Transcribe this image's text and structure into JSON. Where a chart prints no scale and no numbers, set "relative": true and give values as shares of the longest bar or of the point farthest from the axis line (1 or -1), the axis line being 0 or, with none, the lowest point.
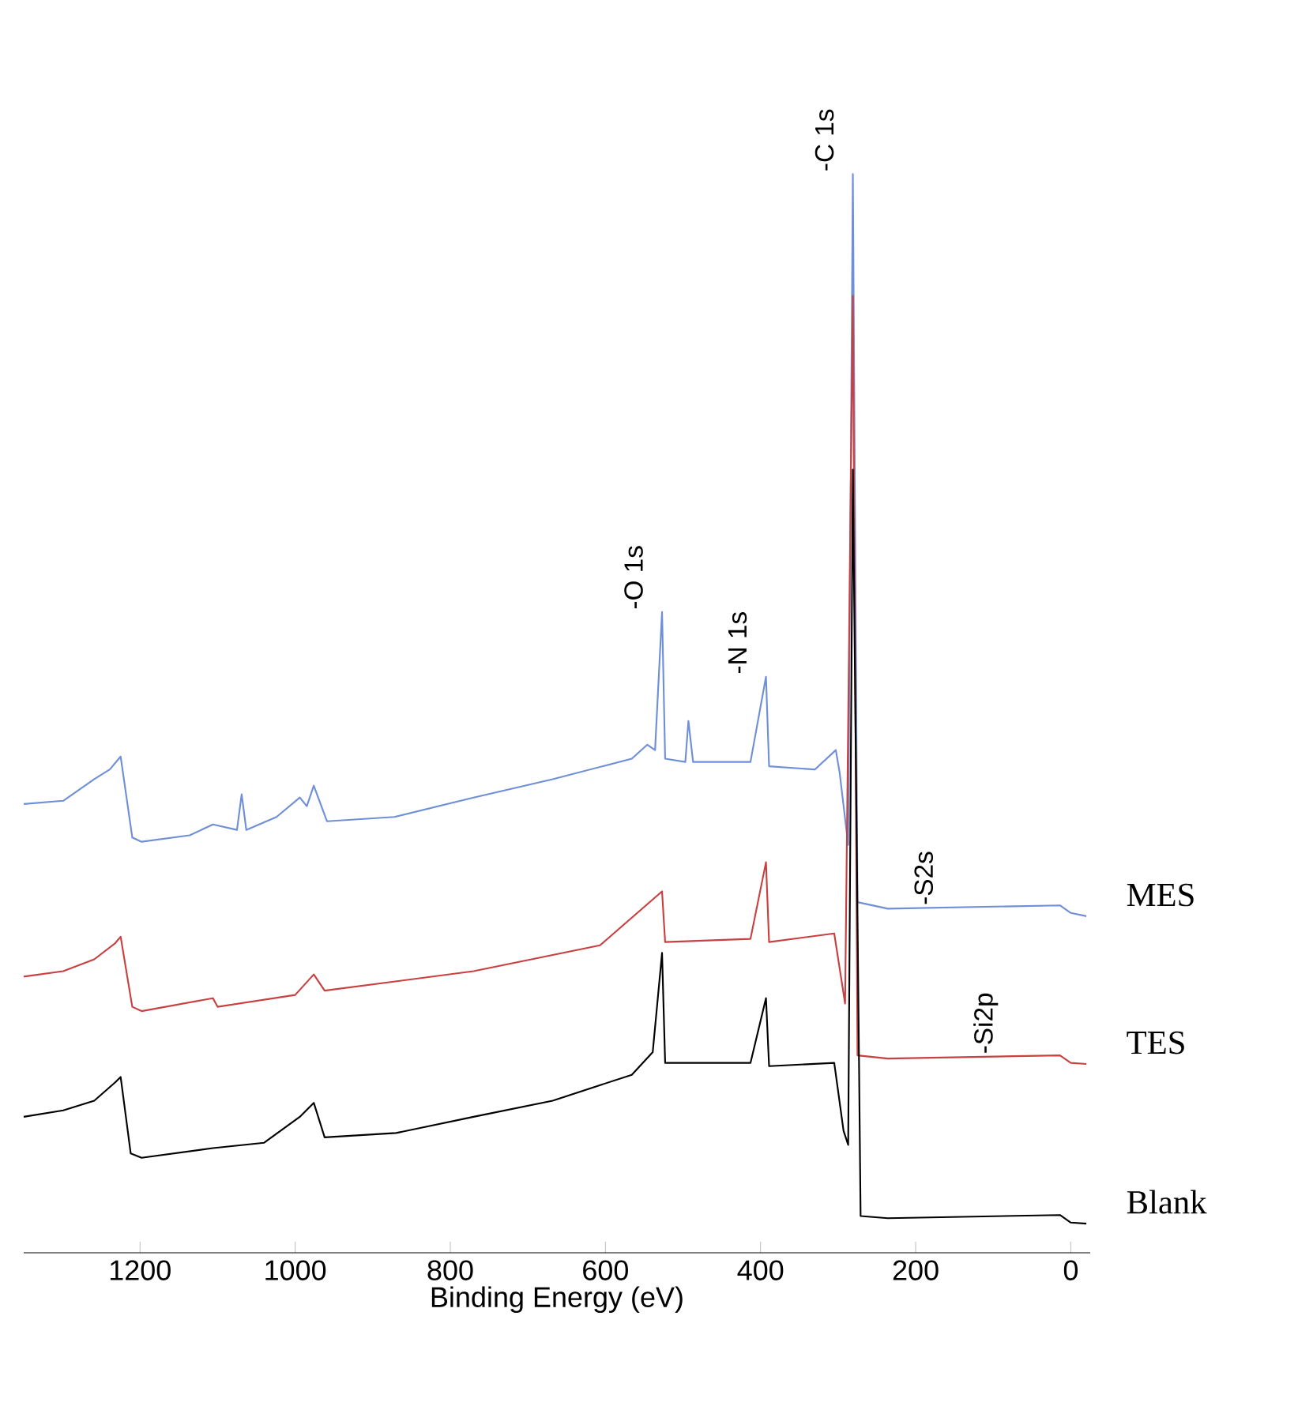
{
  "chart_data": {
    "type": "line",
    "relative": true,
    "xlabel": "Binding Energy (eV)",
    "xlim": [
      1350,
      -25
    ],
    "xticks": [
      1200,
      1000,
      800,
      600,
      400,
      200,
      0
    ],
    "series": [
      {
        "name": "MES",
        "color": "#6f8fd8",
        "x": [
          1350,
          1299,
          1259,
          1239,
          1225,
          1210,
          1198,
          1136,
          1106,
          1075,
          1069,
          1063,
          1024,
          994,
          985,
          976,
          959,
          872,
          770,
          668,
          566,
          546,
          536,
          527,
          523,
          497,
          493,
          487,
          413,
          393,
          389,
          330,
          303,
          298,
          287,
          281,
          275,
          236,
          14,
          0,
          -20
        ],
        "values": [
          0.416,
          0.419,
          0.439,
          0.448,
          0.46,
          0.385,
          0.381,
          0.387,
          0.397,
          0.392,
          0.425,
          0.392,
          0.404,
          0.422,
          0.414,
          0.433,
          0.4,
          0.404,
          0.422,
          0.439,
          0.458,
          0.471,
          0.466,
          0.594,
          0.458,
          0.455,
          0.493,
          0.455,
          0.455,
          0.534,
          0.451,
          0.448,
          0.466,
          0.445,
          0.378,
          1,
          0.325,
          0.319,
          0.322,
          0.315,
          0.312
        ]
      },
      {
        "name": "TES",
        "color": "#c84040",
        "x": [
          1350,
          1299,
          1259,
          1232,
          1225,
          1210,
          1198,
          1106,
          1100,
          1000,
          976,
          962,
          770,
          607,
          527,
          523,
          413,
          393,
          389,
          305,
          291,
          281,
          275,
          236,
          14,
          0,
          -20
        ],
        "values": [
          0.256,
          0.261,
          0.272,
          0.287,
          0.293,
          0.228,
          0.224,
          0.236,
          0.228,
          0.239,
          0.258,
          0.243,
          0.261,
          0.285,
          0.335,
          0.288,
          0.291,
          0.362,
          0.288,
          0.296,
          0.231,
          0.887,
          0.183,
          0.18,
          0.183,
          0.176,
          0.175
        ]
      },
      {
        "name": "Blank",
        "color": "#000000",
        "x": [
          1350,
          1299,
          1259,
          1232,
          1225,
          1212,
          1198,
          1106,
          1040,
          994,
          976,
          962,
          870,
          770,
          668,
          566,
          539,
          527,
          523,
          413,
          393,
          389,
          305,
          293,
          287,
          281,
          271,
          236,
          14,
          0,
          -20
        ],
        "values": [
          0.126,
          0.132,
          0.141,
          0.158,
          0.163,
          0.092,
          0.088,
          0.097,
          0.102,
          0.126,
          0.139,
          0.107,
          0.111,
          0.126,
          0.141,
          0.165,
          0.186,
          0.278,
          0.176,
          0.176,
          0.236,
          0.173,
          0.176,
          0.113,
          0.1,
          0.726,
          0.034,
          0.032,
          0.035,
          0.028,
          0.027
        ]
      }
    ],
    "annotations": [
      {
        "text": "-C 1s",
        "x": 281,
        "y": 1
      },
      {
        "text": "-O 1s",
        "x": 527,
        "y": 0.594
      },
      {
        "text": "-N 1s",
        "x": 393,
        "y": 0.534
      },
      {
        "text": "-S2s",
        "x": 153,
        "y": 0.32
      },
      {
        "text": "-Si2p",
        "x": 73,
        "y": 0.182
      }
    ]
  }
}
